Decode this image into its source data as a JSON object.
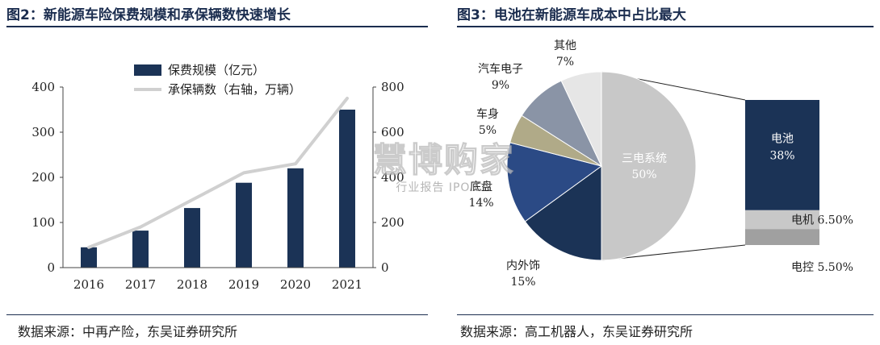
{
  "figure2": {
    "title": "图2：新能源车险保费规模和承保辆数快速增长",
    "source": "数据来源：中再产险，东吴证券研究所"
  },
  "figure3": {
    "title": "图3：电池在新能源车成本中占比最大",
    "source": "数据来源：高工机器人，东吴证券研究所"
  },
  "watermark": {
    "main": "慧博购家",
    "sub": "行业报告 IPO.CN"
  },
  "colors": {
    "navy": "#1b3356",
    "line": "#d0d0d0",
    "slate": "#8a94a6",
    "khaki": "#b0aa88",
    "blue": "#2b4a85",
    "gray": "#c8c8c8",
    "lightgray": "#e6e6e6",
    "midgray": "#a0a0a0"
  },
  "chart_data": [
    {
      "type": "bar",
      "categories": [
        "2016",
        "2017",
        "2018",
        "2019",
        "2020",
        "2021"
      ],
      "series": [
        {
          "name": "保费规模（亿元）",
          "type": "bar",
          "axis": "left",
          "values": [
            45,
            82,
            132,
            188,
            220,
            350
          ]
        },
        {
          "name": "承保辆数（右轴，万辆）",
          "type": "line",
          "axis": "right",
          "values": [
            90,
            180,
            300,
            420,
            460,
            750
          ]
        }
      ],
      "yticks_left": [
        "0",
        "100",
        "200",
        "300",
        "400"
      ],
      "ylim_left": [
        0,
        400
      ],
      "yticks_right": [
        "0",
        "200",
        "400",
        "600",
        "800"
      ],
      "ylim_right": [
        0,
        800
      ],
      "legend_position": "top-center",
      "grid": false
    },
    {
      "type": "pie",
      "slices": [
        {
          "label": "三电系统",
          "value_label": "50%",
          "value": 50
        },
        {
          "label": "内外饰",
          "value_label": "15%",
          "value": 15
        },
        {
          "label": "底盘",
          "value_label": "14%",
          "value": 14
        },
        {
          "label": "车身",
          "value_label": "5%",
          "value": 5
        },
        {
          "label": "汽车电子",
          "value_label": "9%",
          "value": 9
        },
        {
          "label": "其他",
          "value_label": "7%",
          "value": 7
        }
      ],
      "breakdown_of": "三电系统",
      "breakdown": [
        {
          "label": "电池",
          "value_label": "38%",
          "value": 38
        },
        {
          "label": "电机",
          "value_label": "6.50%",
          "value": 6.5
        },
        {
          "label": "电控",
          "value_label": "5.50%",
          "value": 5.5
        }
      ]
    }
  ]
}
